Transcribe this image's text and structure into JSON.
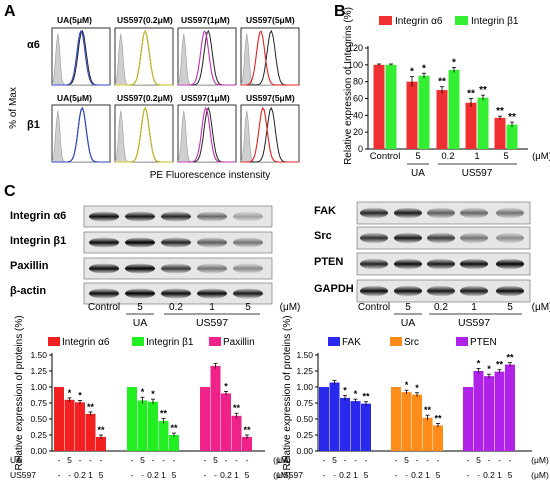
{
  "panel_letters": [
    "A",
    "B",
    "C"
  ],
  "panel_a": {
    "y_label": "% of Max",
    "x_label": "PE Fluorescence instensity",
    "row_labels": [
      "α6",
      "β1"
    ],
    "panels": [
      {
        "label": "UA(5μM)",
        "color": "#2b45c8"
      },
      {
        "label": "US597(0.2μM)",
        "color": "#c8c020"
      },
      {
        "label": "US597(1μM)",
        "color": "#c030b0"
      },
      {
        "label": "US597(5μM)",
        "color": "#e02020"
      }
    ],
    "control_color": "#222222",
    "isotype_color": "#9a9a9a"
  },
  "blot_left": {
    "rows": [
      "Integrin α6",
      "Integrin β1",
      "Paxillin",
      "β-actin"
    ],
    "lanes": [
      "Control",
      "5",
      "0.2",
      "1",
      "5"
    ],
    "unit": "(μM)",
    "group_labels": [
      "UA",
      "US597"
    ]
  },
  "blot_right": {
    "rows": [
      "FAK",
      "Src",
      "PTEN",
      "GAPDH"
    ],
    "lanes": [
      "Control",
      "5",
      "0.2",
      "1",
      "5"
    ],
    "unit": "(μM)",
    "group_labels": [
      "UA",
      "US597"
    ]
  },
  "chart_data": [
    {
      "type": "bar",
      "panel": "B",
      "ylabel": "Relative expression of Integrins (%)",
      "ylim": [
        0,
        120
      ],
      "yticks": [
        "0",
        "20",
        "40",
        "60",
        "80",
        "100",
        "120"
      ],
      "categories": [
        "Control",
        "5",
        "0.2",
        "1",
        "5"
      ],
      "unit": "(μM)",
      "group_labels": [
        "UA",
        "US597"
      ],
      "legend_position": "top",
      "series": [
        {
          "name": "Integrin α6",
          "color": "#f03030",
          "values": [
            100,
            80,
            70,
            55,
            37
          ],
          "errors": [
            1,
            6,
            4,
            5,
            2
          ],
          "marks": [
            "",
            "*",
            "**",
            "**",
            "**"
          ]
        },
        {
          "name": "Integrin β1",
          "color": "#33ee33",
          "values": [
            100,
            87,
            94,
            61,
            29
          ],
          "errors": [
            1,
            3,
            3,
            3,
            3
          ],
          "marks": [
            "",
            "*",
            "*",
            "**",
            "**"
          ]
        }
      ]
    },
    {
      "type": "bar",
      "panel": "C-left",
      "ylabel": "Relative expression of proteins (%)",
      "ylim": [
        0,
        1.5
      ],
      "yticks": [
        "0.00",
        "0.25",
        "0.50",
        "0.75",
        "1.00",
        "1.25",
        "1.50"
      ],
      "legend_position": "top",
      "row_labels": [
        "UA",
        "US597"
      ],
      "row_values": [
        [
          "-",
          "5",
          "-",
          "-",
          "-"
        ],
        [
          "-",
          "-",
          "0.2",
          "1",
          "5"
        ]
      ],
      "unit": "(μM)",
      "series": [
        {
          "name": "Integrin α6",
          "color": "#f22020",
          "values": [
            1.0,
            0.8,
            0.76,
            0.58,
            0.22
          ],
          "errors": [
            0,
            0.03,
            0.03,
            0.03,
            0.03
          ],
          "marks": [
            "",
            "*",
            "*",
            "**",
            "**"
          ]
        },
        {
          "name": "Integrin β1",
          "color": "#22ee22",
          "values": [
            1.0,
            0.79,
            0.77,
            0.47,
            0.25
          ],
          "errors": [
            0,
            0.05,
            0.04,
            0.04,
            0.03
          ],
          "marks": [
            "",
            "*",
            "*",
            "**",
            "**"
          ]
        },
        {
          "name": "Paxillin",
          "color": "#ee2288",
          "values": [
            1.0,
            1.33,
            0.9,
            0.55,
            0.22
          ],
          "errors": [
            0,
            0.04,
            0.03,
            0.04,
            0.03
          ],
          "marks": [
            "",
            "",
            "*",
            "**",
            "**"
          ]
        }
      ]
    },
    {
      "type": "bar",
      "panel": "C-right",
      "ylabel": "Relative expression of proteins (%)",
      "ylim": [
        0,
        1.5
      ],
      "yticks": [
        "0.00",
        "0.25",
        "0.50",
        "0.75",
        "1.00",
        "1.25",
        "1.50"
      ],
      "legend_position": "top",
      "row_labels": [
        "UA",
        "US597"
      ],
      "row_values": [
        [
          "-",
          "5",
          "-",
          "-",
          "-"
        ],
        [
          "-",
          "-",
          "0.2",
          "1",
          "5"
        ]
      ],
      "unit": "(μM)",
      "series": [
        {
          "name": "FAK",
          "color": "#2a2aee",
          "values": [
            1.0,
            1.07,
            0.83,
            0.78,
            0.74
          ],
          "errors": [
            0,
            0.03,
            0.04,
            0.03,
            0.03
          ],
          "marks": [
            "",
            "",
            "*",
            "*",
            "**"
          ]
        },
        {
          "name": "Src",
          "color": "#ff8c1a",
          "values": [
            1.0,
            0.92,
            0.88,
            0.52,
            0.4
          ],
          "errors": [
            0,
            0.03,
            0.03,
            0.04,
            0.03
          ],
          "marks": [
            "",
            "*",
            "*",
            "**",
            "**"
          ]
        },
        {
          "name": "PTEN",
          "color": "#b022e8",
          "values": [
            1.0,
            1.25,
            1.17,
            1.24,
            1.35
          ],
          "errors": [
            0,
            0.04,
            0.03,
            0.03,
            0.03
          ],
          "marks": [
            "",
            "*",
            "*",
            "**",
            "**"
          ]
        }
      ]
    }
  ]
}
